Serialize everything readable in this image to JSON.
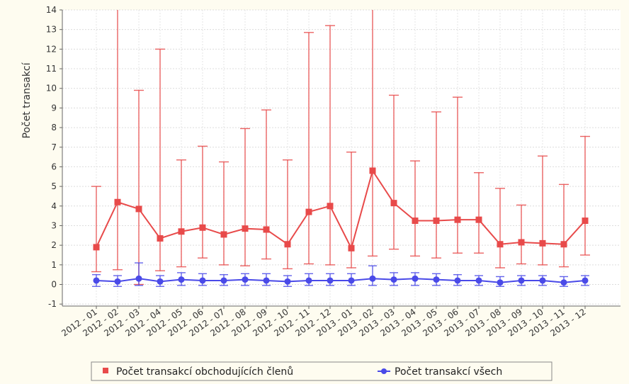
{
  "chart_data": {
    "type": "line",
    "title": "",
    "xlabel": "",
    "ylabel": "Počet transakcí",
    "ylim": [
      -1,
      14
    ],
    "yticks": [
      -1,
      0,
      1,
      2,
      3,
      4,
      5,
      6,
      7,
      8,
      9,
      10,
      11,
      12,
      13,
      14
    ],
    "grid": true,
    "legend_position": "bottom",
    "error_bars": true,
    "categories": [
      "2012 - 01",
      "2012 - 02",
      "2012 - 03",
      "2012 - 04",
      "2012 - 05",
      "2012 - 06",
      "2012 - 07",
      "2012 - 08",
      "2012 - 09",
      "2012 - 10",
      "2012 - 11",
      "2012 - 12",
      "2013 - 01",
      "2013 - 02",
      "2013 - 03",
      "2013 - 04",
      "2013 - 05",
      "2013 - 06",
      "2013 - 07",
      "2013 - 08",
      "2013 - 09",
      "2013 - 10",
      "2013 - 11",
      "2013 - 12"
    ],
    "series": [
      {
        "name": "Počet transakcí obchodujících členů",
        "color": "#e84a4a",
        "values": [
          1.9,
          4.2,
          3.85,
          2.35,
          2.7,
          2.9,
          2.55,
          2.85,
          2.8,
          2.05,
          3.7,
          4.0,
          1.85,
          5.8,
          4.15,
          3.25,
          3.25,
          3.3,
          3.3,
          2.05,
          2.15,
          2.1,
          2.05,
          3.25
        ],
        "lower": [
          0.65,
          0.75,
          0.0,
          0.7,
          0.9,
          1.35,
          1.0,
          0.95,
          1.3,
          0.8,
          1.05,
          1.0,
          0.85,
          1.45,
          1.8,
          1.45,
          1.35,
          1.6,
          1.6,
          0.85,
          1.05,
          1.0,
          0.9,
          1.5
        ],
        "upper": [
          5.0,
          14,
          9.9,
          12.0,
          6.35,
          7.05,
          6.25,
          7.95,
          8.9,
          6.35,
          12.85,
          13.2,
          6.75,
          14,
          9.65,
          6.3,
          8.8,
          9.55,
          5.7,
          4.9,
          4.05,
          6.55,
          5.1,
          7.55
        ]
      },
      {
        "name": "Počet transakcí všech",
        "color": "#4a4ae8",
        "values": [
          0.2,
          0.15,
          0.3,
          0.15,
          0.25,
          0.2,
          0.2,
          0.25,
          0.2,
          0.15,
          0.2,
          0.2,
          0.2,
          0.3,
          0.25,
          0.3,
          0.25,
          0.2,
          0.2,
          0.1,
          0.2,
          0.2,
          0.1,
          0.2
        ],
        "lower": [
          -0.1,
          -0.1,
          -0.05,
          -0.1,
          -0.05,
          -0.05,
          -0.05,
          -0.05,
          -0.05,
          -0.1,
          -0.05,
          -0.05,
          -0.05,
          -0.05,
          -0.05,
          -0.05,
          -0.05,
          -0.05,
          -0.05,
          -0.1,
          -0.05,
          -0.05,
          -0.1,
          -0.05
        ],
        "upper": [
          0.5,
          0.45,
          1.1,
          0.45,
          0.6,
          0.55,
          0.5,
          0.55,
          0.55,
          0.45,
          0.55,
          0.55,
          0.55,
          0.95,
          0.6,
          0.6,
          0.55,
          0.5,
          0.45,
          0.4,
          0.45,
          0.45,
          0.4,
          0.45
        ]
      }
    ]
  }
}
